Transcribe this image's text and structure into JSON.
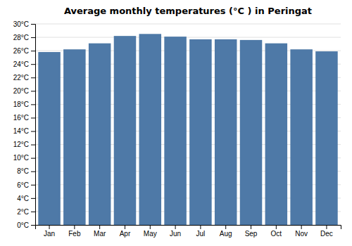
{
  "chart_data": {
    "type": "bar",
    "title": "Average monthly temperatures (°C ) in Peringat",
    "categories": [
      "Jan",
      "Feb",
      "Mar",
      "Apr",
      "May",
      "Jun",
      "Jul",
      "Aug",
      "Sep",
      "Oct",
      "Nov",
      "Dec"
    ],
    "values": [
      25.8,
      26.2,
      27.1,
      28.2,
      28.5,
      28.1,
      27.7,
      27.7,
      27.6,
      27.1,
      26.2,
      25.9
    ],
    "ylim": [
      0,
      30
    ],
    "yticks": [
      {
        "value": 0,
        "label": "0°C"
      },
      {
        "value": 2,
        "label": "2°C"
      },
      {
        "value": 4,
        "label": "4°C"
      },
      {
        "value": 6,
        "label": "6°C"
      },
      {
        "value": 8,
        "label": "8°C"
      },
      {
        "value": 10,
        "label": "10°C"
      },
      {
        "value": 12,
        "label": "12°C"
      },
      {
        "value": 14,
        "label": "14°C"
      },
      {
        "value": 16,
        "label": "16°C"
      },
      {
        "value": 18,
        "label": "18°C"
      },
      {
        "value": 20,
        "label": "20°C"
      },
      {
        "value": 22,
        "label": "22°C"
      },
      {
        "value": 24,
        "label": "24°C"
      },
      {
        "value": 26,
        "label": "26°C"
      },
      {
        "value": 28,
        "label": "28°C"
      },
      {
        "value": 30,
        "label": "30°C"
      }
    ],
    "grid": true
  }
}
